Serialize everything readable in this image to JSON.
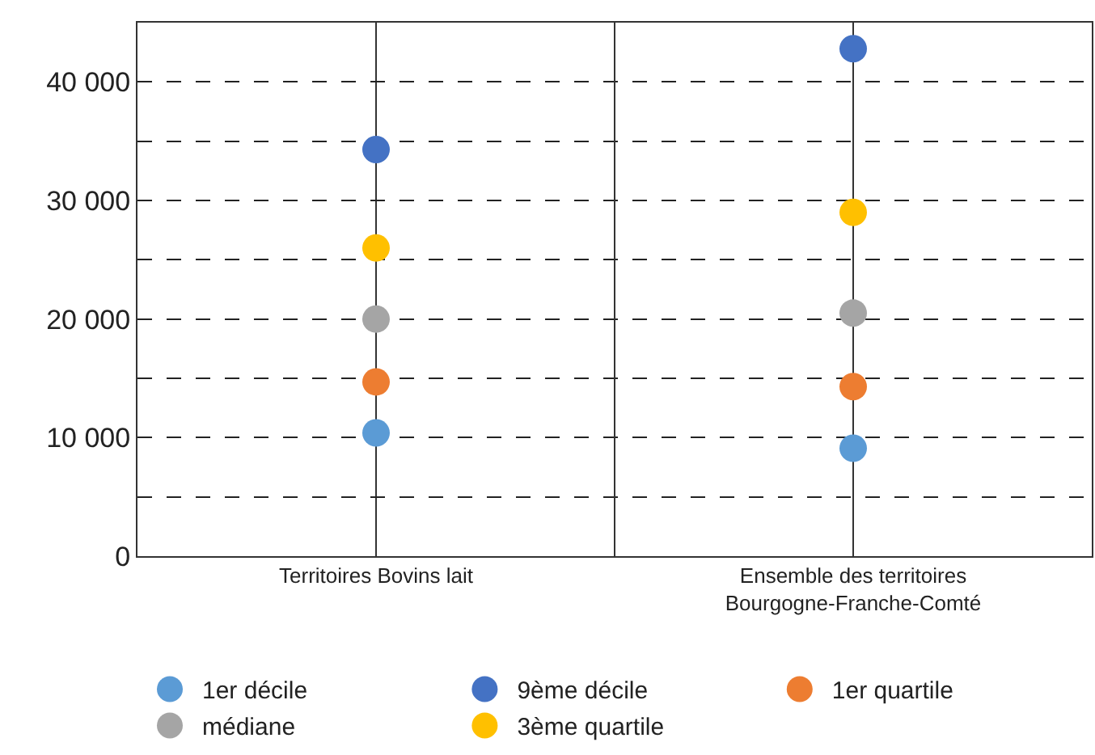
{
  "chart_data": {
    "type": "scatter",
    "categories": [
      "Territoires Bovins lait",
      "Ensemble des territoires\nBourgogne-Franche-Comté"
    ],
    "series": [
      {
        "name": "1er décile",
        "color": "#5b9bd5",
        "values": [
          10400,
          9100
        ]
      },
      {
        "name": "9ème décile",
        "color": "#4472c4",
        "values": [
          34300,
          42800
        ]
      },
      {
        "name": "1er quartile",
        "color": "#ed7d31",
        "values": [
          14700,
          14300
        ]
      },
      {
        "name": "médiane",
        "color": "#a5a5a5",
        "values": [
          20000,
          20500
        ]
      },
      {
        "name": "3ème quartile",
        "color": "#ffc000",
        "values": [
          26000,
          29000
        ]
      }
    ],
    "ylim": [
      0,
      45000
    ],
    "yticks": [
      0,
      {
        "value": 5000,
        "label": null
      },
      {
        "value": 10000,
        "label": "10 000"
      },
      {
        "value": 15000,
        "label": null
      },
      {
        "value": 20000,
        "label": "20 000"
      },
      {
        "value": 25000,
        "label": null
      },
      {
        "value": 30000,
        "label": "30 000"
      },
      {
        "value": 35000,
        "label": null
      },
      {
        "value": 40000,
        "label": "40 000"
      }
    ],
    "grid": true,
    "legend": "bottom",
    "marker": "circle"
  }
}
